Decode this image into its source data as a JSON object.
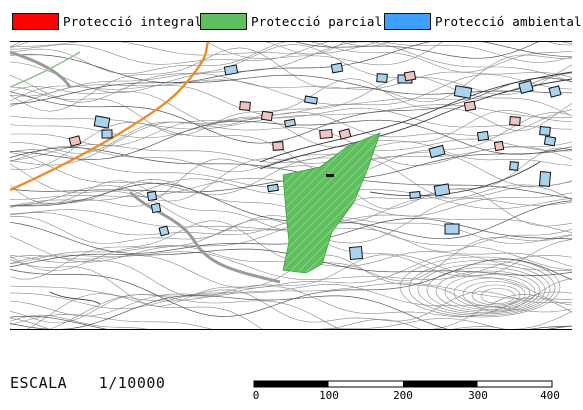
{
  "legend": {
    "items": [
      {
        "label": "Protecció integral",
        "color": "#ff0000"
      },
      {
        "label": "Protecció parcial",
        "color": "#5fbf5f"
      },
      {
        "label": "Protecció ambiental",
        "color": "#3f9fff"
      }
    ]
  },
  "scale": {
    "label": "ESCALA",
    "ratio": "1/10000",
    "ticks": [
      "0",
      "100",
      "200",
      "300",
      "400"
    ]
  }
}
